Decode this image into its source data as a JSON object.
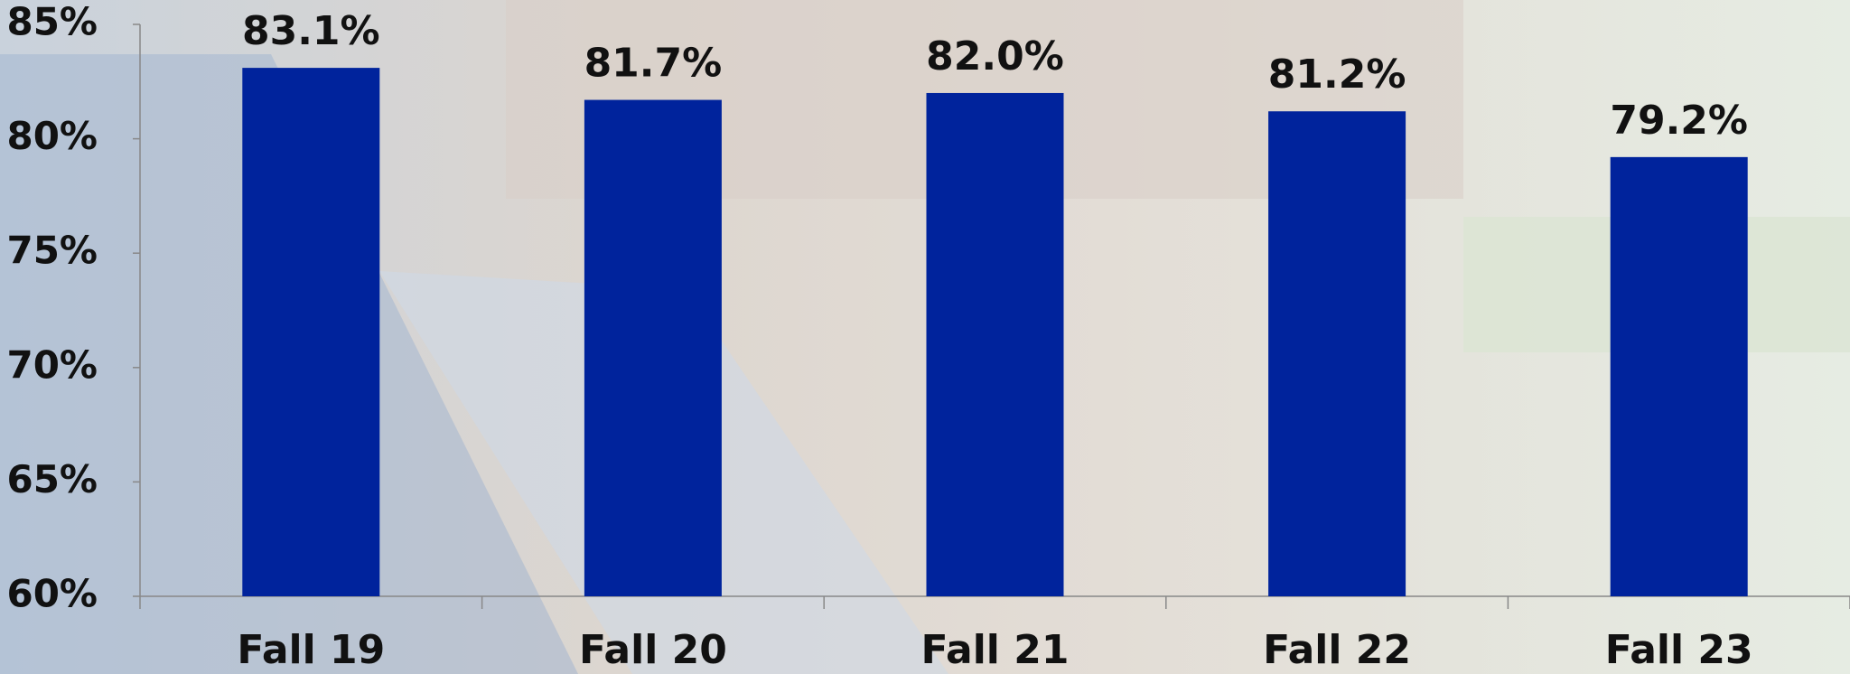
{
  "chart_data": {
    "type": "bar",
    "categories": [
      "Fall 19",
      "Fall 20",
      "Fall 21",
      "Fall 22",
      "Fall 23"
    ],
    "values": [
      83.1,
      81.7,
      82.0,
      81.2,
      79.2
    ],
    "value_labels": [
      "83.1%",
      "81.7%",
      "82.0%",
      "81.2%",
      "79.2%"
    ],
    "color": "#00239c",
    "ylim": [
      60,
      85
    ],
    "yticks": [
      {
        "value": 60,
        "label": "60%"
      },
      {
        "value": 65,
        "label": "65%"
      },
      {
        "value": 70,
        "label": "70%"
      },
      {
        "value": 75,
        "label": "75%"
      },
      {
        "value": 80,
        "label": "80%"
      },
      {
        "value": 85,
        "label": "85%"
      }
    ]
  }
}
